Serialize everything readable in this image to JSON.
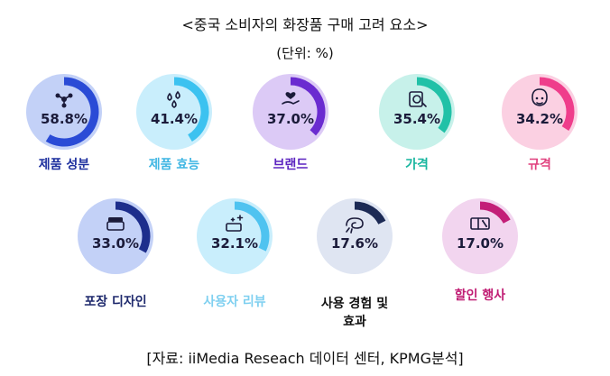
{
  "title": "<중국 소비자의 화장품 구매 고려 요소>",
  "unit": "(단위: %)",
  "source": "[자료: iiMedia Reseach 데이터 센터, KPMG분석]",
  "chart_data": {
    "type": "donut-gauge",
    "title": "<중국 소비자의 화장품 구매 고려 요소>",
    "unit": "%",
    "categories": [
      "제품 성분",
      "제품 효능",
      "브랜드",
      "가격",
      "규격",
      "포장 디자인",
      "사용자 리뷰",
      "사용 경험 및 효과",
      "할인 행사"
    ],
    "values": [
      58.8,
      41.4,
      37.0,
      35.4,
      34.2,
      33.0,
      32.1,
      17.6,
      17.0
    ],
    "value_labels": [
      "58.8%",
      "41.4%",
      "37.0%",
      "35.4%",
      "34.2%",
      "33.0%",
      "32.1%",
      "17.6%",
      "17.0%"
    ],
    "display_labels": [
      "제품 성분",
      "제품 효능",
      "브랜드",
      "가격",
      "규격",
      "포장 디자인",
      "사용자 리뷰",
      "사용 경험 및\n효과",
      "할인 행사"
    ],
    "colors": {
      "fill": [
        "#c3d1f7",
        "#c9eefc",
        "#dccaf6",
        "#c7f1ea",
        "#fbd0e2",
        "#c3d1f7",
        "#c9eefc",
        "#dfe5f2",
        "#f2d5ef"
      ],
      "arc": [
        "#2a4bd6",
        "#3cc2f0",
        "#6a2bd0",
        "#21c1a7",
        "#ef3d8b",
        "#1d2e8c",
        "#4fc3f0",
        "#1c2a55",
        "#c31f78"
      ],
      "label": [
        "#1d2f9e",
        "#3fb6e3",
        "#5b23c0",
        "#16b59e",
        "#e0407e",
        "#1f2a6d",
        "#7fd0f0",
        "#111111",
        "#c01c73"
      ]
    },
    "icons": [
      "molecule-icon",
      "droplets-icon",
      "hand-heart-icon",
      "price-tag-icon",
      "face-icon",
      "cream-jar-icon",
      "sparkle-box-icon",
      "swirl-icon",
      "coupon-icon"
    ]
  }
}
